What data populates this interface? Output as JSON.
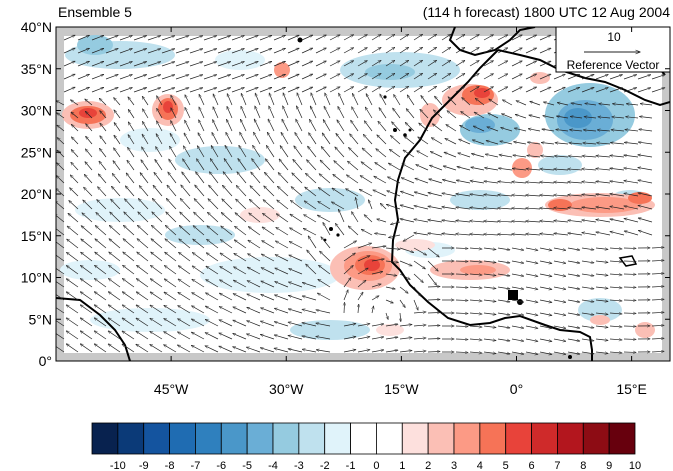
{
  "header": {
    "left_title": "Ensemble 5",
    "right_title": "(114 h forecast) 1800 UTC 12 Aug 2004"
  },
  "map": {
    "lat_labels": [
      "40°N",
      "35°N",
      "30°N",
      "25°N",
      "20°N",
      "15°N",
      "10°N",
      "5°N",
      "0°"
    ],
    "lon_labels": [
      "45°W",
      "30°W",
      "15°W",
      "0°",
      "15°E"
    ],
    "extent": {
      "lon": [
        -60,
        20
      ],
      "lat": [
        0,
        40
      ]
    },
    "lat_values": [
      40,
      35,
      30,
      25,
      20,
      15,
      10,
      5,
      0
    ],
    "lon_values": [
      -45,
      -30,
      -15,
      0,
      15
    ]
  },
  "reference_vector": {
    "magnitude_label": "10",
    "caption": "Reference Vector"
  },
  "colorbar": {
    "labels": [
      "-10",
      "-9",
      "-8",
      "-7",
      "-6",
      "-5",
      "-4",
      "-3",
      "-2",
      "-1",
      "0",
      "1",
      "2",
      "3",
      "4",
      "5",
      "6",
      "7",
      "8",
      "9",
      "10"
    ],
    "colors": [
      "#08224f",
      "#0b3a78",
      "#14549f",
      "#1f6cb2",
      "#2f80be",
      "#4a97c9",
      "#6aaed6",
      "#95cbe0",
      "#bfe1ee",
      "#e0f3fa",
      "#ffffff",
      "#ffffff",
      "#fde0dd",
      "#fbbfb5",
      "#fc9a85",
      "#f67357",
      "#e8433a",
      "#cf2a2a",
      "#b3161e",
      "#8d0c14",
      "#67000d"
    ]
  },
  "colors": {
    "land_gray": "#c8c8c8",
    "coast": "#000000"
  }
}
